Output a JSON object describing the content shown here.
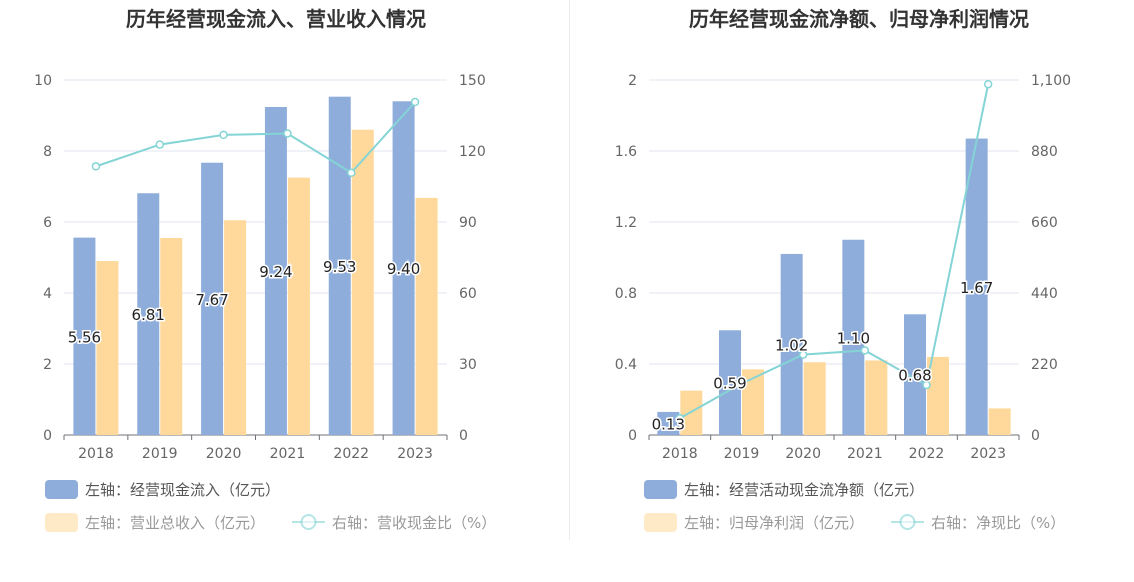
{
  "chart_data": [
    {
      "type": "bar",
      "title": "历年经营现金流入、营业收入情况",
      "categories": [
        "2018",
        "2019",
        "2020",
        "2021",
        "2022",
        "2023"
      ],
      "left_axis": {
        "min": 0,
        "max": 10,
        "ticks": [
          "0",
          "2",
          "4",
          "6",
          "8",
          "10"
        ],
        "tick_values": [
          0,
          2,
          4,
          6,
          8,
          10
        ]
      },
      "right_axis": {
        "min": 0,
        "max": 150,
        "ticks": [
          "0",
          "30",
          "60",
          "90",
          "120",
          "150"
        ],
        "tick_values": [
          0,
          30,
          60,
          90,
          120,
          150
        ]
      },
      "series": [
        {
          "name": "左轴：经营现金流入（亿元）",
          "type": "bar",
          "axis": "left",
          "color": "#8eaddb",
          "values": [
            5.56,
            6.81,
            7.67,
            9.24,
            9.53,
            9.4
          ],
          "labels": [
            "5.56",
            "6.81",
            "7.67",
            "9.24",
            "9.53",
            "9.40"
          ]
        },
        {
          "name": "左轴：营业总收入（亿元）",
          "type": "bar",
          "axis": "left",
          "color": "#ffd99b",
          "values": [
            4.9,
            5.55,
            6.05,
            7.25,
            8.6,
            6.68
          ]
        },
        {
          "name": "右轴：营收现金比（%）",
          "type": "line",
          "axis": "right",
          "color": "#84d4d6",
          "values": [
            113.5,
            122.7,
            126.8,
            127.4,
            110.8,
            140.7
          ]
        }
      ]
    },
    {
      "type": "bar",
      "title": "历年经营现金流净额、归母净利润情况",
      "categories": [
        "2018",
        "2019",
        "2020",
        "2021",
        "2022",
        "2023"
      ],
      "left_axis": {
        "min": 0,
        "max": 2,
        "ticks": [
          "0",
          "0.4",
          "0.8",
          "1.2",
          "1.6",
          "2"
        ],
        "tick_values": [
          0,
          0.4,
          0.8,
          1.2,
          1.6,
          2
        ]
      },
      "right_axis": {
        "min": 0,
        "max": 1100,
        "ticks": [
          "0",
          "220",
          "440",
          "660",
          "880",
          "1,100"
        ],
        "tick_values": [
          0,
          220,
          440,
          660,
          880,
          1100
        ]
      },
      "series": [
        {
          "name": "左轴：经营活动现金流净额（亿元）",
          "type": "bar",
          "axis": "left",
          "color": "#8eaddb",
          "values": [
            0.13,
            0.59,
            1.02,
            1.1,
            0.68,
            1.67
          ],
          "labels": [
            "0.13",
            "0.59",
            "1.02",
            "1.10",
            "0.68",
            "1.67"
          ]
        },
        {
          "name": "左轴：归母净利润（亿元）",
          "type": "bar",
          "axis": "left",
          "color": "#ffd99b",
          "values": [
            0.25,
            0.37,
            0.41,
            0.42,
            0.44,
            0.15
          ]
        },
        {
          "name": "右轴：净现比（%）",
          "type": "line",
          "axis": "right",
          "color": "#84d4d6",
          "values": [
            52,
            159,
            249,
            262,
            155,
            1087
          ]
        }
      ]
    }
  ]
}
